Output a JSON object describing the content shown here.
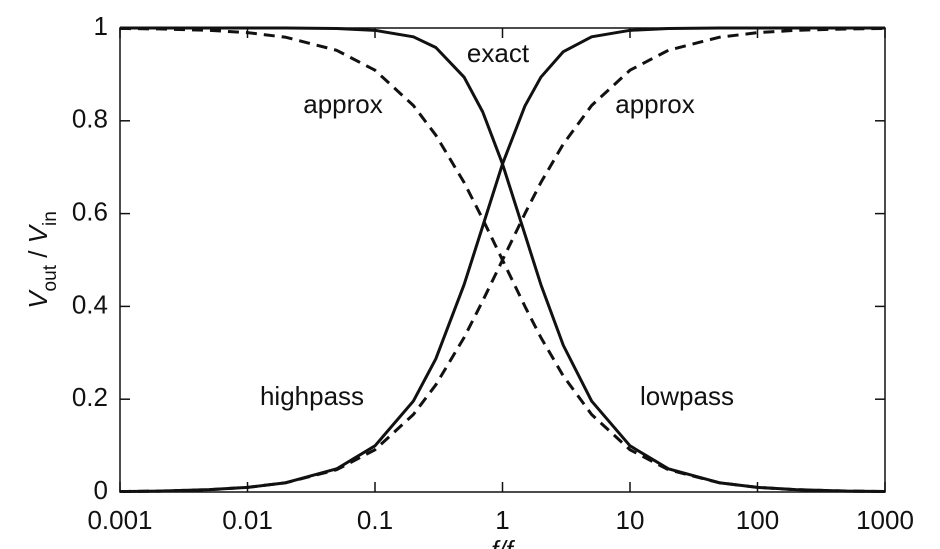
{
  "chart_data": {
    "type": "line",
    "ylabel_parts": [
      "V",
      "out",
      " / ",
      "V",
      "in"
    ],
    "xlabel": "f/f",
    "x": [
      0.001,
      0.002,
      0.005,
      0.01,
      0.02,
      0.05,
      0.1,
      0.2,
      0.3,
      0.5,
      0.7,
      1,
      1.5,
      2,
      3,
      5,
      10,
      20,
      50,
      100,
      200,
      500,
      1000
    ],
    "series": [
      {
        "name": "exact lowpass",
        "color": "#111111",
        "dashed": false,
        "values": [
          1.0,
          1.0,
          1.0,
          1.0,
          1.0,
          0.999,
          0.995,
          0.981,
          0.958,
          0.894,
          0.819,
          0.707,
          0.555,
          0.447,
          0.316,
          0.196,
          0.0995,
          0.05,
          0.02,
          0.01,
          0.005,
          0.002,
          0.001
        ]
      },
      {
        "name": "exact highpass",
        "color": "#111111",
        "dashed": false,
        "values": [
          0.001,
          0.002,
          0.005,
          0.01,
          0.02,
          0.0499,
          0.0995,
          0.196,
          0.287,
          0.447,
          0.573,
          0.707,
          0.832,
          0.894,
          0.949,
          0.981,
          0.995,
          0.999,
          1.0,
          1.0,
          1.0,
          1.0,
          1.0
        ]
      },
      {
        "name": "approx lowpass",
        "color": "#111111",
        "dashed": true,
        "values": [
          0.999,
          0.998,
          0.995,
          0.99,
          0.98,
          0.952,
          0.909,
          0.833,
          0.769,
          0.667,
          0.588,
          0.5,
          0.4,
          0.333,
          0.25,
          0.167,
          0.091,
          0.048,
          0.02,
          0.0099,
          0.005,
          0.002,
          0.001
        ]
      },
      {
        "name": "approx highpass",
        "color": "#111111",
        "dashed": true,
        "values": [
          0.001,
          0.002,
          0.005,
          0.01,
          0.02,
          0.048,
          0.091,
          0.167,
          0.231,
          0.333,
          0.412,
          0.5,
          0.6,
          0.667,
          0.75,
          0.833,
          0.909,
          0.952,
          0.98,
          0.99,
          0.995,
          0.998,
          0.999
        ]
      }
    ],
    "annotations": [
      "exact",
      "approx",
      "approx",
      "highpass",
      "lowpass"
    ],
    "xlog": true,
    "xlim": [
      0.001,
      1000
    ],
    "xticks": [
      0.001,
      0.01,
      0.1,
      1,
      10,
      100,
      1000
    ],
    "ylim": [
      0,
      1
    ],
    "yticks": [
      0,
      0.2,
      0.4,
      0.6,
      0.8,
      1
    ]
  }
}
